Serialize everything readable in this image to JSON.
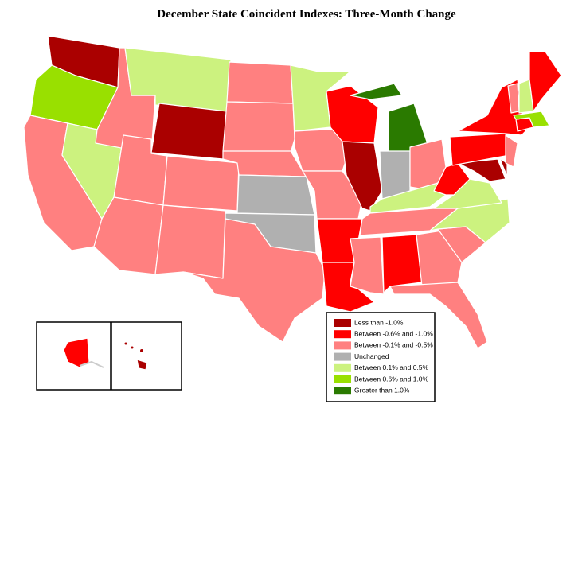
{
  "title": "December State Coincident Indexes: Three-Month Change",
  "legend": [
    {
      "label": "Less than -1.0%",
      "color": "#aa0000"
    },
    {
      "label": "Between -0.6% and -1.0%",
      "color": "#ff0000"
    },
    {
      "label": "Between -0.1% and -0.5%",
      "color": "#ff8080"
    },
    {
      "label": "Unchanged",
      "color": "#b0b0b0"
    },
    {
      "label": "Between 0.1% and 0.5%",
      "color": "#ccf27f"
    },
    {
      "label": "Between 0.6% and 1.0%",
      "color": "#99e000"
    },
    {
      "label": "Greater than 1.0%",
      "color": "#2a7a00"
    }
  ]
}
